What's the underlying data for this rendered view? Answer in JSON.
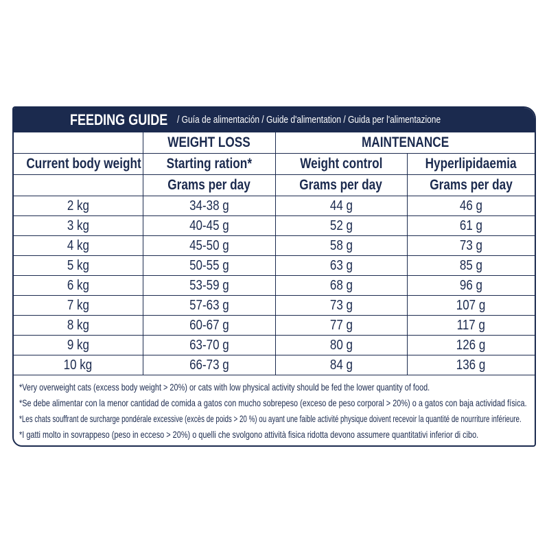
{
  "title": {
    "main": "FEEDING GUIDE",
    "sub": " / Guía de alimentación / Guide d'alimentation / Guida per l'alimentazione"
  },
  "header": {
    "weight_loss": "WEIGHT LOSS",
    "maintenance": "MAINTENANCE",
    "col1": "Current body weight",
    "col2": "Starting ration*",
    "col3": "Weight control",
    "col4": "Hyperlipidaemia",
    "unit": "Grams per day"
  },
  "rows": [
    [
      "2 kg",
      "34-38 g",
      "44 g",
      "46 g"
    ],
    [
      "3 kg",
      "40-45 g",
      "52 g",
      "61 g"
    ],
    [
      "4 kg",
      "45-50 g",
      "58 g",
      "73 g"
    ],
    [
      "5 kg",
      "50-55 g",
      "63 g",
      "85 g"
    ],
    [
      "6 kg",
      "53-59 g",
      "68 g",
      "96 g"
    ],
    [
      "7 kg",
      "57-63 g",
      "73 g",
      "107 g"
    ],
    [
      "8 kg",
      "60-67 g",
      "77 g",
      "117 g"
    ],
    [
      "9 kg",
      "63-70 g",
      "80 g",
      "126 g"
    ],
    [
      "10 kg",
      "66-73 g",
      "84 g",
      "136 g"
    ]
  ],
  "footnotes": [
    "*Very overweight cats (excess body weight > 20%) or cats with low physical activity should be fed the lower quantity of food.",
    "*Se debe alimentar con la menor cantidad de comida a gatos con mucho sobrepeso (exceso de peso corporal > 20%) o a gatos con baja actividad física.",
    "*Les chats souffrant de surcharge pondérale excessive (excès de poids > 20 %) ou ayant une faible activité physique doivent recevoir la quantité de nourriture inférieure.",
    "*I gatti molto in sovrappeso (peso in ecceso > 20%) o quelli che svolgono attività fisica ridotta devono assumere quantitativi inferior di cibo."
  ],
  "colors": {
    "navy": "#1b2a4e"
  }
}
